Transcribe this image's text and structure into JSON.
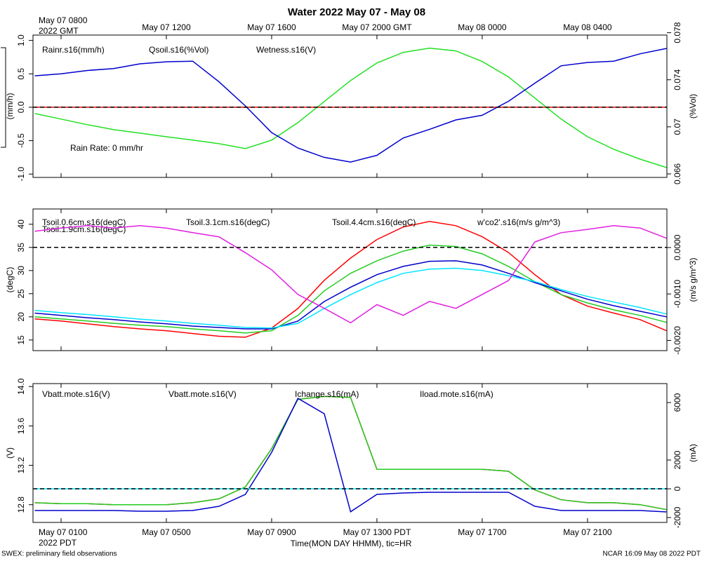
{
  "title": "Water 2022 May 07 - May 08",
  "time_axis": {
    "x": [
      "2022-05-07T07:00",
      "2022-05-07T08:00",
      "2022-05-07T09:00",
      "2022-05-07T10:00",
      "2022-05-07T11:00",
      "2022-05-07T12:00",
      "2022-05-07T13:00",
      "2022-05-07T14:00",
      "2022-05-07T15:00",
      "2022-05-07T16:00",
      "2022-05-07T17:00",
      "2022-05-07T18:00",
      "2022-05-07T19:00",
      "2022-05-07T20:00",
      "2022-05-07T21:00",
      "2022-05-07T22:00",
      "2022-05-07T23:00",
      "2022-05-08T00:00",
      "2022-05-08T01:00",
      "2022-05-08T02:00",
      "2022-05-08T03:00",
      "2022-05-08T04:00",
      "2022-05-08T05:00",
      "2022-05-08T06:00",
      "2022-05-08T07:00"
    ],
    "xlim": [
      "2022-05-07T06:56",
      "2022-05-08T07:01"
    ],
    "xticks": [
      {
        "value": "2022-05-07T08:00",
        "label": "May 07 0800"
      },
      {
        "value": "2022-05-07T12:00",
        "label": "May 07 1200"
      },
      {
        "value": "2022-05-07T16:00",
        "label": "May 07 1600"
      },
      {
        "value": "2022-05-07T20:00",
        "label": "May 07 2000 GMT"
      },
      {
        "value": "2022-05-08T00:00",
        "label": "May 08 0000"
      },
      {
        "value": "2022-05-08T04:00",
        "label": "May 08 0400"
      }
    ],
    "year_label": "2022 GMT",
    "xticks_local": [
      {
        "value": "2022-05-07T08:00",
        "label": "May 07 0100"
      },
      {
        "value": "2022-05-07T12:00",
        "label": "May 07 0500"
      },
      {
        "value": "2022-05-07T16:00",
        "label": "May 07 0900"
      },
      {
        "value": "2022-05-07T20:00",
        "label": "May 07 1300 PDT"
      },
      {
        "value": "2022-05-08T00:00",
        "label": "May 07 1700"
      },
      {
        "value": "2022-05-08T04:00",
        "label": "May 07 2100"
      }
    ],
    "year_label_local": "2022 PDT",
    "xlabel": "Time(MON DAY HHMM), tic=HR"
  },
  "chart_data": [
    {
      "type": "line",
      "ylabel": "(mm/h)",
      "y2label": "(%Vol)",
      "ylim": [
        -1.05,
        1.08
      ],
      "yticks": [
        {
          "value": 1,
          "label": "1.0"
        },
        0.5,
        {
          "value": 0,
          "label": "0.0"
        },
        -0.5,
        {
          "value": -1,
          "label": "-1.0"
        }
      ],
      "y2lim": [
        0.0657,
        0.0778
      ],
      "y2ticks": [
        0.078,
        0.074,
        0.07,
        0.066
      ],
      "reference_line": 0,
      "annotation": "Rain Rate: 0 mm/hr",
      "series": [
        {
          "name": "Rainr.s16(mm/h)",
          "color": "#ff0000",
          "values": [
            0,
            0,
            0,
            0,
            0,
            0,
            0,
            0,
            0,
            0,
            0,
            0,
            0,
            0,
            0,
            0,
            0,
            0,
            0,
            0,
            0,
            0,
            0,
            0,
            0
          ]
        },
        {
          "name": "Qsoil.s16(%Vol)",
          "color": "#22e022",
          "axis": "y2",
          "values": [
            0.07113,
            0.07066,
            0.07018,
            0.06976,
            0.06946,
            0.06916,
            0.06887,
            0.06857,
            0.06815,
            0.06887,
            0.07036,
            0.07215,
            0.07394,
            0.07543,
            0.07633,
            0.07669,
            0.07645,
            0.07555,
            0.07424,
            0.07245,
            0.07066,
            0.06916,
            0.06809,
            0.06725,
            0.06654
          ]
        },
        {
          "name": "Wetness.s16(V)",
          "color": "#0000cc",
          "values": [
            0.47,
            0.5,
            0.55,
            0.58,
            0.65,
            0.68,
            0.69,
            0.38,
            0.02,
            -0.38,
            -0.61,
            -0.75,
            -0.82,
            -0.72,
            -0.46,
            -0.33,
            -0.19,
            -0.12,
            0.09,
            0.36,
            0.62,
            0.67,
            0.69,
            0.8,
            0.88
          ]
        }
      ]
    },
    {
      "type": "line",
      "ylabel": "(degC)",
      "y2label": "(m/s g/m^3)",
      "ylim": [
        12.7,
        43.3
      ],
      "yticks": [
        40,
        35,
        30,
        25,
        20,
        15
      ],
      "y2lim": [
        -0.00222,
        0.00083
      ],
      "y2ticks": [
        {
          "value": 0,
          "label": "0.0000"
        },
        {
          "value": -0.001,
          "label": "-0.0010"
        },
        {
          "value": -0.002,
          "label": "-0.0020"
        }
      ],
      "reference_line": 35,
      "series": [
        {
          "name": "Tsoil.0.6cm.s16(degC)",
          "color": "#ff0000",
          "values": [
            19.55,
            19.1,
            18.5,
            17.9,
            17.4,
            17.0,
            16.4,
            15.8,
            15.6,
            17.6,
            21.8,
            27.9,
            32.7,
            36.7,
            39.4,
            40.6,
            39.7,
            37.3,
            33.9,
            29.1,
            24.8,
            22.3,
            20.8,
            19.4,
            17.0
          ]
        },
        {
          "name": "Tsoil.1.9cm.s16(degC)",
          "color": "#22cc22",
          "values": [
            20.0,
            19.55,
            19.1,
            18.6,
            18.2,
            17.9,
            17.4,
            17.0,
            16.5,
            17.0,
            20.3,
            25.6,
            29.4,
            32.1,
            34.2,
            35.5,
            35.2,
            33.6,
            30.9,
            27.6,
            24.8,
            23.0,
            21.5,
            20.3,
            18.8
          ]
        },
        {
          "name": "Tsoil.3.1cm.s16(degC)",
          "color": "#0000cc",
          "values": [
            20.8,
            20.3,
            19.8,
            19.4,
            18.9,
            18.5,
            18.0,
            17.7,
            17.4,
            17.4,
            19.1,
            23.3,
            26.4,
            29.1,
            30.9,
            32.0,
            32.1,
            31.2,
            29.4,
            27.4,
            25.6,
            23.8,
            22.4,
            21.2,
            20.0
          ]
        },
        {
          "name": "Tsoil.4.4cm.s16(degC)",
          "color": "#00e5ff",
          "values": [
            21.4,
            20.9,
            20.5,
            20.0,
            19.5,
            19.1,
            18.6,
            18.2,
            17.7,
            17.6,
            18.6,
            21.8,
            24.8,
            27.4,
            29.4,
            30.3,
            30.5,
            30.0,
            28.9,
            27.6,
            25.9,
            24.4,
            23.2,
            22.0,
            20.6
          ]
        },
        {
          "name": "w'co2'.s16(m/s g/m^3)",
          "color": "#e020e0",
          "axis": "y2",
          "values": [
            0.00035,
            0.00042,
            0.00047,
            0.00042,
            0.00047,
            0.00042,
            0.00032,
            0.00023,
            -0.00011,
            -0.00048,
            -0.00101,
            -0.00131,
            -0.00162,
            -0.00123,
            -0.00146,
            -0.00116,
            -0.00131,
            -0.00101,
            -0.00071,
            0.00012,
            0.00032,
            0.00039,
            0.00047,
            0.00042,
            0.0002
          ]
        }
      ]
    },
    {
      "type": "line",
      "ylabel": "(V)",
      "y2label": "(mA)",
      "ylim": [
        12.62,
        14.03
      ],
      "yticks": [
        {
          "value": 14,
          "label": "14.0"
        },
        13.6,
        13.2,
        12.8
      ],
      "y2lim": [
        -2340,
        7320
      ],
      "y2ticks": [
        6000,
        2000,
        0,
        -2000
      ],
      "reference_line": 0,
      "reference_axis": "y2",
      "series": [
        {
          "name": "Vbatt.mote.s16(V)",
          "color": "#ff0000",
          "values": [
            12.82,
            12.81,
            12.81,
            12.8,
            12.8,
            12.8,
            12.82,
            12.86,
            12.98,
            13.37,
            13.87,
            13.9,
            13.89,
            13.16,
            13.16,
            13.16,
            13.16,
            13.16,
            13.14,
            12.95,
            12.85,
            12.82,
            12.82,
            12.8,
            12.75
          ]
        },
        {
          "name": "Vbatt.mote.s16(V)",
          "color": "#22cc22",
          "values": [
            12.82,
            12.81,
            12.81,
            12.8,
            12.8,
            12.8,
            12.82,
            12.86,
            12.98,
            13.37,
            13.87,
            13.9,
            13.89,
            13.16,
            13.16,
            13.16,
            13.16,
            13.16,
            13.14,
            12.95,
            12.85,
            12.82,
            12.82,
            12.8,
            12.75
          ]
        },
        {
          "name": "Ichange.s16(mA)",
          "color": "#0000cc",
          "axis": "y2",
          "values": [
            -1510,
            -1510,
            -1510,
            -1510,
            -1560,
            -1560,
            -1510,
            -1220,
            -390,
            2540,
            6290,
            5220,
            -1600,
            -390,
            -290,
            -240,
            -240,
            -240,
            -240,
            -1220,
            -1510,
            -1510,
            -1510,
            -1510,
            -1610
          ]
        },
        {
          "name": "Iload.mote.s16(mA)",
          "color": "#00e5ff",
          "axis": "y2",
          "values": [
            0,
            0,
            0,
            0,
            0,
            0,
            0,
            0,
            0,
            0,
            0,
            0,
            0,
            0,
            0,
            0,
            0,
            0,
            0,
            0,
            0,
            0,
            0,
            0,
            0
          ]
        }
      ]
    }
  ],
  "footer_left": "SWEX: preliminary field observations",
  "footer_right": "NCAR 16:09 May 08 2022 PDT"
}
